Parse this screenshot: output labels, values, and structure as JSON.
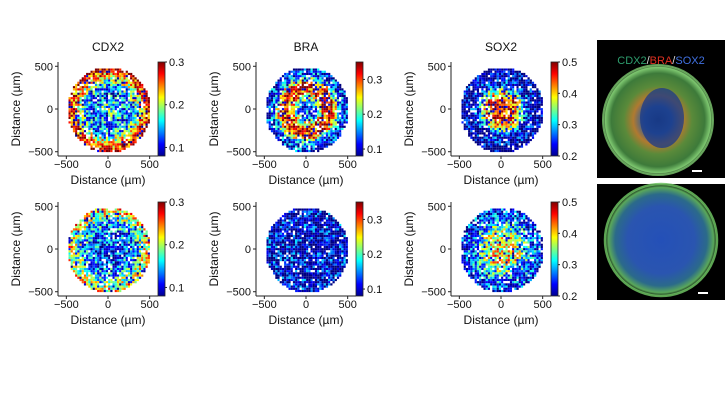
{
  "figure": {
    "panels": [
      {
        "title": "CDX2",
        "colorbar_ticks": [
          "0.3",
          "0.2",
          "0.1"
        ]
      },
      {
        "title": "BRA",
        "colorbar_ticks": [
          "0.3",
          "0.2",
          "0.1"
        ]
      },
      {
        "title": "SOX2",
        "colorbar_ticks": [
          "0.5",
          "0.4",
          "0.3",
          "0.2"
        ]
      },
      {
        "title": "",
        "colorbar_ticks": [
          "0.3",
          "0.2",
          "0.1"
        ]
      },
      {
        "title": "",
        "colorbar_ticks": [
          "0.3",
          "0.2",
          "0.1"
        ]
      },
      {
        "title": "",
        "colorbar_ticks": [
          "0.5",
          "0.4",
          "0.3",
          "0.2"
        ]
      }
    ],
    "micrograph_label": {
      "cdx2": "CDX2",
      "sep1": "/",
      "bra": "BRA",
      "sep2": "/",
      "sox2": "SOX2"
    },
    "colors": {
      "cdx2": "#2e9e6e",
      "bra": "#e03020",
      "sox2": "#2050c0"
    }
  },
  "chart_data": [
    {
      "type": "heatmap",
      "title": "CDX2",
      "xlabel": "Distance (µm)",
      "ylabel": "Distance (µm)",
      "xlim": [
        -600,
        600
      ],
      "ylim": [
        -550,
        550
      ],
      "xticks": [
        -500,
        0,
        500
      ],
      "yticks": [
        500,
        0,
        -500
      ],
      "colorbar": {
        "range": [
          0.08,
          0.3
        ],
        "ticks": [
          0.3,
          0.2,
          0.1
        ]
      },
      "pattern": "high at rim, low in middle ring, high at center",
      "radial_profile": [
        0.18,
        0.16,
        0.13,
        0.16,
        0.24,
        0.29
      ]
    },
    {
      "type": "heatmap",
      "title": "BRA",
      "xlabel": "Distance (µm)",
      "ylabel": "Distance (µm)",
      "xlim": [
        -600,
        600
      ],
      "ylim": [
        -550,
        550
      ],
      "xticks": [
        -500,
        0,
        500
      ],
      "yticks": [
        500,
        0,
        -500
      ],
      "colorbar": {
        "range": [
          0.08,
          0.35
        ],
        "ticks": [
          0.3,
          0.2,
          0.1
        ]
      },
      "pattern": "ring of high expression at mid radius",
      "radial_profile": [
        0.12,
        0.16,
        0.3,
        0.33,
        0.14,
        0.11
      ]
    },
    {
      "type": "heatmap",
      "title": "SOX2",
      "xlabel": "Distance (µm)",
      "ylabel": "Distance (µm)",
      "xlim": [
        -600,
        600
      ],
      "ylim": [
        -550,
        550
      ],
      "xticks": [
        -500,
        0,
        500
      ],
      "yticks": [
        500,
        0,
        -500
      ],
      "colorbar": {
        "range": [
          0.2,
          0.5
        ],
        "ticks": [
          0.5,
          0.4,
          0.3,
          0.2
        ]
      },
      "pattern": "high in center disc, low elsewhere",
      "radial_profile": [
        0.46,
        0.48,
        0.4,
        0.24,
        0.21,
        0.2
      ]
    },
    {
      "type": "heatmap",
      "title": "",
      "xlabel": "Distance (µm)",
      "ylabel": "Distance (µm)",
      "xlim": [
        -600,
        600
      ],
      "ylim": [
        -550,
        550
      ],
      "xticks": [
        -500,
        0,
        500
      ],
      "yticks": [
        500,
        0,
        -500
      ],
      "colorbar": {
        "range": [
          0.08,
          0.3
        ],
        "ticks": [
          0.3,
          0.2,
          0.1
        ]
      },
      "pattern": "mostly low, moderately higher at rim",
      "radial_profile": [
        0.12,
        0.12,
        0.13,
        0.15,
        0.19,
        0.23
      ]
    },
    {
      "type": "heatmap",
      "title": "",
      "xlabel": "Distance (µm)",
      "ylabel": "Distance (µm)",
      "xlim": [
        -600,
        600
      ],
      "ylim": [
        -550,
        550
      ],
      "xticks": [
        -500,
        0,
        500
      ],
      "yticks": [
        500,
        0,
        -500
      ],
      "colorbar": {
        "range": [
          0.08,
          0.35
        ],
        "ticks": [
          0.3,
          0.2,
          0.1
        ]
      },
      "pattern": "uniformly low",
      "radial_profile": [
        0.1,
        0.1,
        0.1,
        0.1,
        0.1,
        0.1
      ]
    },
    {
      "type": "heatmap",
      "title": "",
      "xlabel": "Distance (µm)",
      "ylabel": "Distance (µm)",
      "xlim": [
        -600,
        600
      ],
      "ylim": [
        -550,
        550
      ],
      "xticks": [
        -500,
        0,
        500
      ],
      "yticks": [
        500,
        0,
        -500
      ],
      "colorbar": {
        "range": [
          0.2,
          0.5
        ],
        "ticks": [
          0.5,
          0.4,
          0.3,
          0.2
        ]
      },
      "pattern": "patchy, moderately high center, lower at rim",
      "radial_profile": [
        0.38,
        0.4,
        0.36,
        0.3,
        0.26,
        0.23
      ]
    }
  ]
}
